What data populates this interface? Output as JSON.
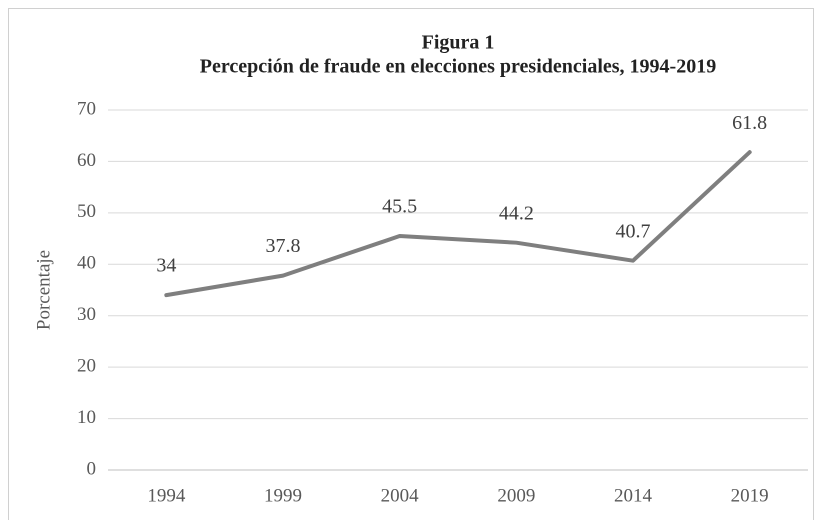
{
  "chart_data": {
    "type": "line",
    "title": "Figura 1",
    "subtitle": "Percepción de fraude en elecciones presidenciales, 1994-2019",
    "y_label": "Porcentaje",
    "categories": [
      "1994",
      "1999",
      "2004",
      "2009",
      "2014",
      "2019"
    ],
    "values": [
      34,
      37.8,
      45.5,
      44.2,
      40.7,
      61.8
    ],
    "color": "#7f7f7f",
    "ylim": [
      0,
      70
    ],
    "yticks": [
      0,
      10,
      20,
      30,
      40,
      50,
      60,
      70
    ],
    "grid": true
  }
}
